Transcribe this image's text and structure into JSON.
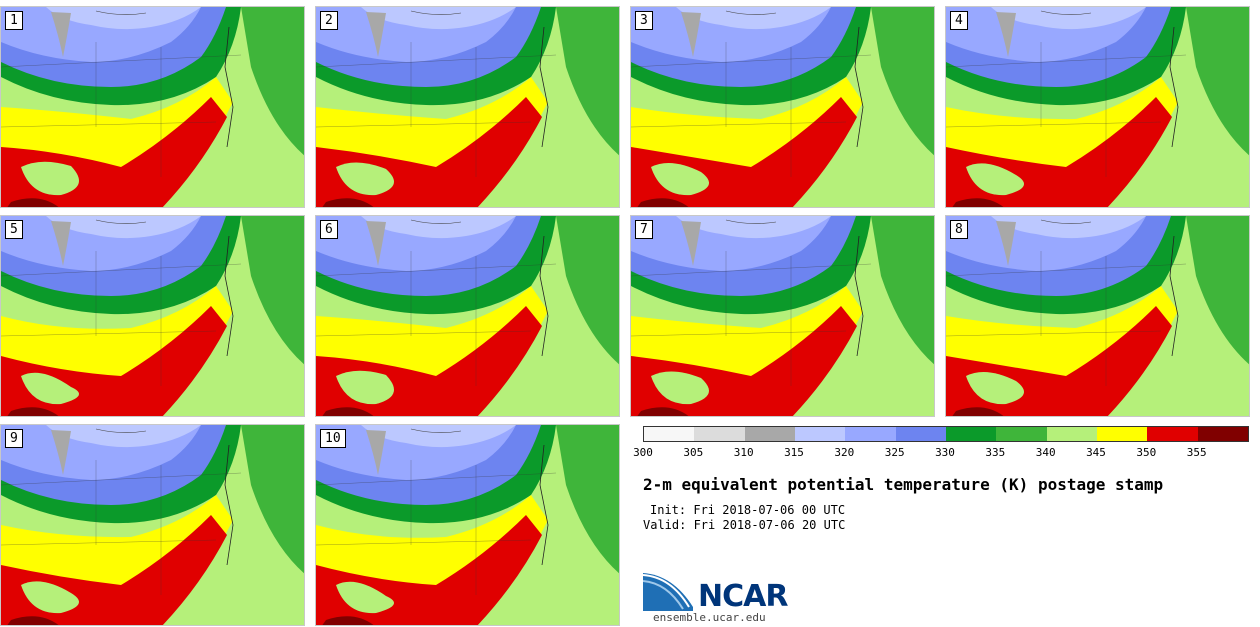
{
  "figure": {
    "title": "2-m equivalent potential temperature (K) postage stamp",
    "init_label": "Init: Fri 2018-07-06 00 UTC",
    "valid_label": "Valid: Fri 2018-07-06 20 UTC",
    "website": "ensemble.ucar.edu",
    "logo_text": "NCAR"
  },
  "members": [
    "1",
    "2",
    "3",
    "4",
    "5",
    "6",
    "7",
    "8",
    "9",
    "10"
  ],
  "colorbar": {
    "ticks": [
      "300",
      "305",
      "310",
      "315",
      "320",
      "325",
      "330",
      "335",
      "340",
      "345",
      "350",
      "355"
    ],
    "bins": [
      {
        "from": 300,
        "to": 305,
        "color": "#f7f7f7"
      },
      {
        "from": 305,
        "to": 310,
        "color": "#dcdcdc"
      },
      {
        "from": 310,
        "to": 315,
        "color": "#a8a8a8"
      },
      {
        "from": 315,
        "to": 320,
        "color": "#bcc8ff"
      },
      {
        "from": 320,
        "to": 325,
        "color": "#98a8ff"
      },
      {
        "from": 325,
        "to": 330,
        "color": "#6d84f0"
      },
      {
        "from": 330,
        "to": 335,
        "color": "#0b9a2a"
      },
      {
        "from": 335,
        "to": 340,
        "color": "#3fb53a"
      },
      {
        "from": 340,
        "to": 345,
        "color": "#b5f07a"
      },
      {
        "from": 345,
        "to": 350,
        "color": "#ffff00"
      },
      {
        "from": 350,
        "to": 355,
        "color": "#e00000"
      },
      {
        "from": 355,
        "to": 360,
        "color": "#800000"
      }
    ]
  }
}
